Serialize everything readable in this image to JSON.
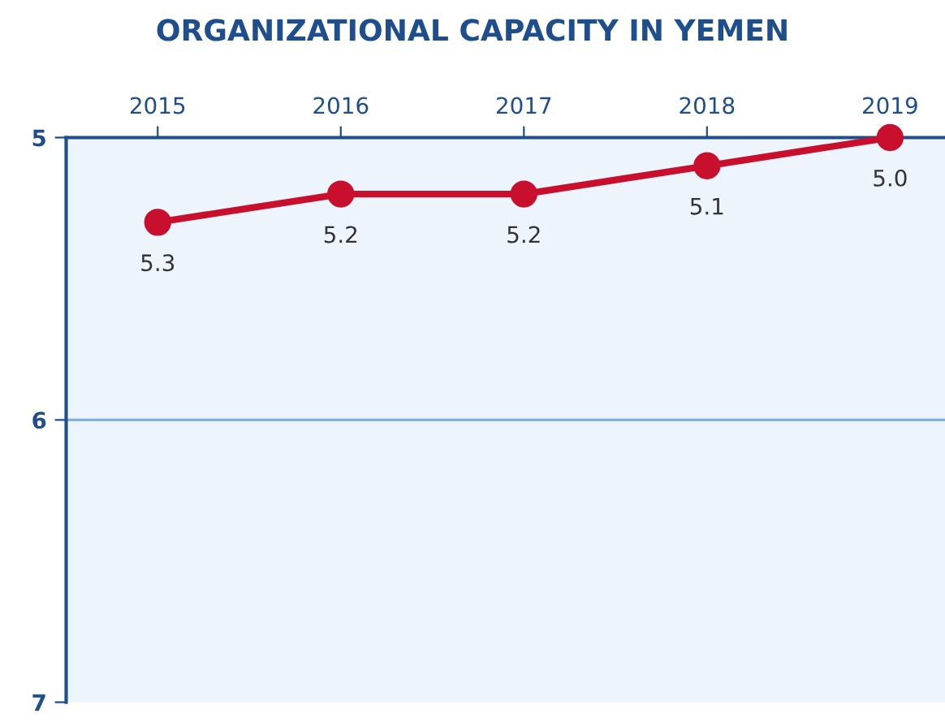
{
  "chart_data": {
    "type": "line",
    "title": "ORGANIZATIONAL CAPACITY IN YEMEN",
    "categories": [
      "2015",
      "2016",
      "2017",
      "2018",
      "2019"
    ],
    "series": [
      {
        "color": "#c8102e",
        "values": [
          5.3,
          5.2,
          5.2,
          5.1,
          5.0
        ]
      }
    ],
    "value_labels": [
      "5.3",
      "5.2",
      "5.2",
      "5.1",
      "5.0"
    ],
    "ref_lines": [
      {
        "axis": "y",
        "value": 6,
        "color": "#7fb0dd"
      }
    ],
    "ylim": [
      7,
      5
    ],
    "yticks": [
      5,
      6,
      7
    ],
    "marker": "circle",
    "line_style": "solid"
  }
}
